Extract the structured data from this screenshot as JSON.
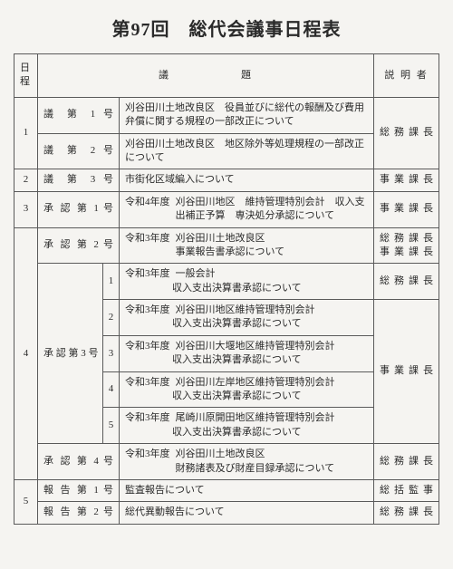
{
  "title": "第97回　総代会議事日程表",
  "headers": {
    "nittei": "日程",
    "gidai": "議　　　　　　題",
    "setsumei": "説 明 者"
  },
  "rows": {
    "r1": {
      "num": "1",
      "a_label": "議 第 1 号",
      "a_text": "刈谷田川土地改良区　役員並びに総代の報酬及び費用弁償に関する規程の一部改正について",
      "b_label": "議 第 2 号",
      "b_text": "刈谷田川土地改良区　地区除外等処理規程の一部改正について",
      "pres": "総務課長"
    },
    "r2": {
      "num": "2",
      "label": "議 第 3 号",
      "text": "市街化区域編入について",
      "pres": "事業課長"
    },
    "r3": {
      "num": "3",
      "label": "承 認 第 1 号",
      "yr": "令和4年度",
      "text": "刈谷田川地区　維持管理特別会計　収入支出補正予算　専決処分承認について",
      "pres": "事業課長"
    },
    "r4": {
      "num": "4",
      "a_label": "承 認 第 2 号",
      "a_yr": "令和3年度",
      "a_text": "刈谷田川土地改良区\n事業報告書承認について",
      "a_pres": "総務課長\n事業課長",
      "b_label": "承 認 第 3 号",
      "b_items": [
        {
          "n": "1",
          "yr": "令和3年度",
          "t": "一般会計",
          "s": "収入支出決算書承認について",
          "pres": "総務課長"
        },
        {
          "n": "2",
          "yr": "令和3年度",
          "t": "刈谷田川地区維持管理特別会計",
          "s": "収入支出決算書承認について",
          "pres": ""
        },
        {
          "n": "3",
          "yr": "令和3年度",
          "t": "刈谷田川大堰地区維持管理特別会計",
          "s": "収入支出決算書承認について",
          "pres": ""
        },
        {
          "n": "4",
          "yr": "令和3年度",
          "t": "刈谷田川左岸地区維持管理特別会計",
          "s": "収入支出決算書承認について",
          "pres": "事業課長"
        },
        {
          "n": "5",
          "yr": "令和3年度",
          "t": "尾崎川原開田地区維持管理特別会計",
          "s": "収入支出決算書承認について",
          "pres": ""
        }
      ],
      "c_label": "承 認 第 4 号",
      "c_yr": "令和3年度",
      "c_text": "刈谷田川土地改良区\n財務諸表及び財産目録承認について",
      "c_pres": "総務課長"
    },
    "r5": {
      "num": "5",
      "a_label": "報 告 第 1 号",
      "a_text": "監査報告について",
      "a_pres": "総括監事",
      "b_label": "報 告 第 2 号",
      "b_text": "総代異動報告について",
      "b_pres": "総務課長"
    }
  }
}
